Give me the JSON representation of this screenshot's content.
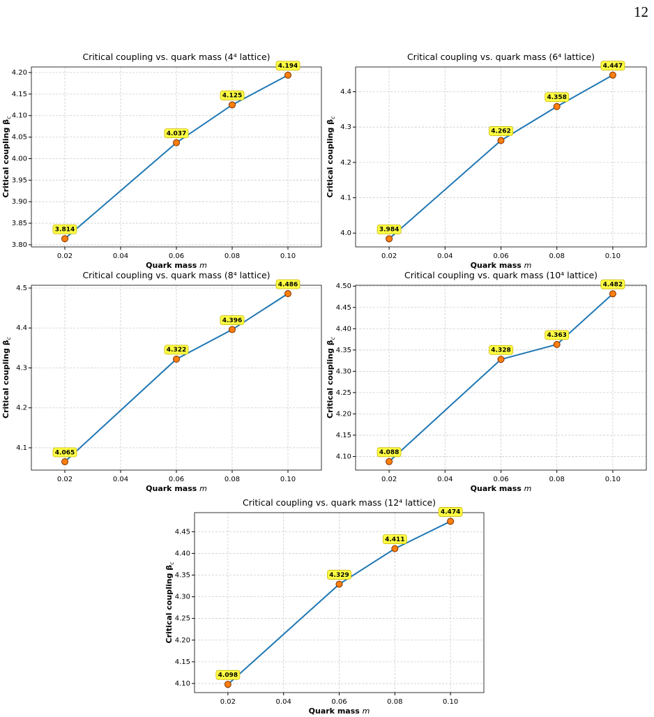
{
  "page_number": "12",
  "chart_data": [
    {
      "type": "line",
      "title": "Critical coupling vs. quark mass (4⁴ lattice)",
      "xlabel": "Quark mass ",
      "xlabel_symbol": "m",
      "ylabel": "Critical coupling β",
      "ylabel_sub": "c",
      "x": [
        0.02,
        0.06,
        0.08,
        0.1
      ],
      "series": [
        {
          "color": "#1f77b4",
          "values": [
            3.814,
            4.037,
            4.125,
            4.194
          ]
        }
      ],
      "xlim": [
        0.008,
        0.112
      ],
      "xticks": [
        0.02,
        0.04,
        0.06,
        0.08,
        {
          "value": 0.1,
          "label": "0.10"
        }
      ],
      "ylim": [
        3.795,
        4.213
      ],
      "yticks": [
        {
          "value": 3.8,
          "label": "3.80"
        },
        3.85,
        {
          "value": 3.9,
          "label": "3.90"
        },
        3.95,
        {
          "value": 4.0,
          "label": "4.00"
        },
        4.05,
        {
          "value": 4.1,
          "label": "4.10"
        },
        4.15,
        {
          "value": 4.2,
          "label": "4.20"
        }
      ],
      "grid": true
    },
    {
      "type": "line",
      "title": "Critical coupling vs. quark mass (6⁴ lattice)",
      "xlabel": "Quark mass ",
      "xlabel_symbol": "m",
      "ylabel": "Critical coupling β",
      "ylabel_sub": "c",
      "x": [
        0.02,
        0.06,
        0.08,
        0.1
      ],
      "series": [
        {
          "color": "#1f77b4",
          "values": [
            3.984,
            4.262,
            4.358,
            4.447
          ]
        }
      ],
      "xlim": [
        0.008,
        0.112
      ],
      "xticks": [
        0.02,
        0.04,
        0.06,
        0.08,
        {
          "value": 0.1,
          "label": "0.10"
        }
      ],
      "ylim": [
        3.961,
        4.47
      ],
      "yticks": [
        {
          "value": 4.0,
          "label": "4.0"
        },
        4.1,
        4.2,
        4.3,
        4.4
      ],
      "grid": true
    },
    {
      "type": "line",
      "title": "Critical coupling vs. quark mass (8⁴ lattice)",
      "xlabel": "Quark mass ",
      "xlabel_symbol": "m",
      "ylabel": "Critical coupling β",
      "ylabel_sub": "c",
      "x": [
        0.02,
        0.06,
        0.08,
        0.1
      ],
      "series": [
        {
          "color": "#1f77b4",
          "values": [
            4.065,
            4.322,
            4.396,
            4.486
          ]
        }
      ],
      "xlim": [
        0.008,
        0.112
      ],
      "xticks": [
        0.02,
        0.04,
        0.06,
        0.08,
        {
          "value": 0.1,
          "label": "0.10"
        }
      ],
      "ylim": [
        4.044,
        4.507
      ],
      "yticks": [
        4.1,
        4.2,
        4.3,
        4.4,
        4.5
      ],
      "grid": true
    },
    {
      "type": "line",
      "title": "Critical coupling vs. quark mass (10⁴ lattice)",
      "xlabel": "Quark mass ",
      "xlabel_symbol": "m",
      "ylabel": "Critical coupling β",
      "ylabel_sub": "c",
      "x": [
        0.02,
        0.06,
        0.08,
        0.1
      ],
      "series": [
        {
          "color": "#1f77b4",
          "values": [
            4.088,
            4.328,
            4.363,
            4.482
          ]
        }
      ],
      "xlim": [
        0.008,
        0.112
      ],
      "xticks": [
        0.02,
        0.04,
        0.06,
        0.08,
        {
          "value": 0.1,
          "label": "0.10"
        }
      ],
      "ylim": [
        4.068,
        4.502
      ],
      "yticks": [
        {
          "value": 4.1,
          "label": "4.10"
        },
        4.15,
        {
          "value": 4.2,
          "label": "4.20"
        },
        4.25,
        {
          "value": 4.3,
          "label": "4.30"
        },
        4.35,
        {
          "value": 4.4,
          "label": "4.40"
        },
        4.45,
        {
          "value": 4.5,
          "label": "4.50"
        }
      ],
      "grid": true
    },
    {
      "type": "line",
      "title": "Critical coupling vs. quark mass (12⁴ lattice)",
      "xlabel": "Quark mass ",
      "xlabel_symbol": "m",
      "ylabel": "Critical coupling β",
      "ylabel_sub": "c",
      "x": [
        0.02,
        0.06,
        0.08,
        0.1
      ],
      "series": [
        {
          "color": "#1f77b4",
          "values": [
            4.098,
            4.329,
            4.411,
            4.474
          ]
        }
      ],
      "xlim": [
        0.008,
        0.112
      ],
      "xticks": [
        0.02,
        0.04,
        0.06,
        0.08,
        {
          "value": 0.1,
          "label": "0.10"
        }
      ],
      "ylim": [
        4.079,
        4.494
      ],
      "yticks": [
        {
          "value": 4.1,
          "label": "4.10"
        },
        4.15,
        {
          "value": 4.2,
          "label": "4.20"
        },
        4.25,
        {
          "value": 4.3,
          "label": "4.30"
        },
        4.35,
        {
          "value": 4.4,
          "label": "4.40"
        },
        4.45
      ],
      "grid": true
    }
  ]
}
